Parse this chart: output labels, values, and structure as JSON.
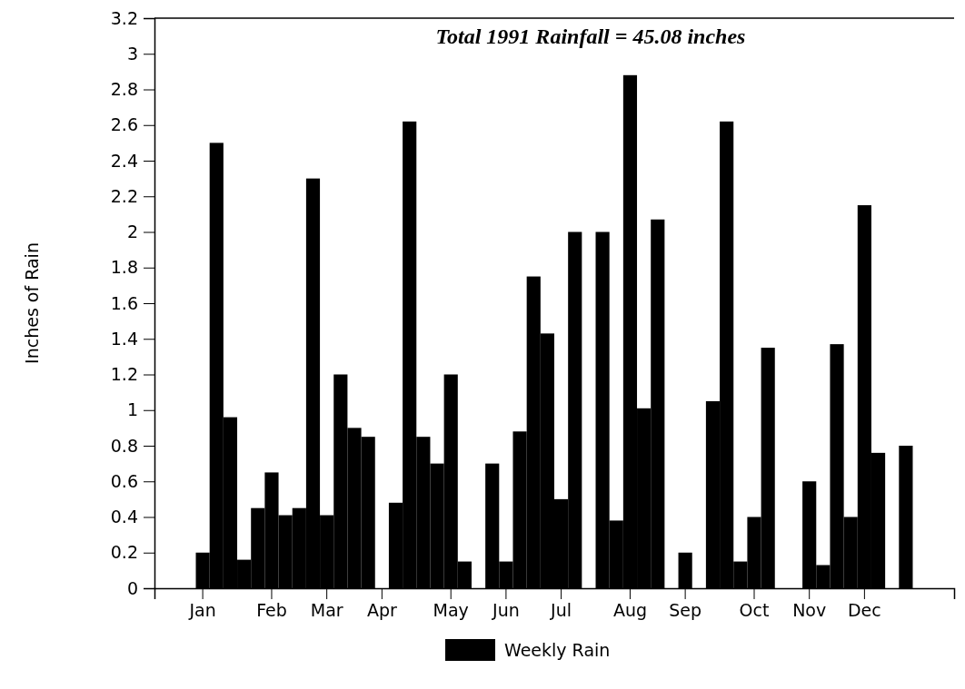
{
  "chart_data": {
    "type": "bar",
    "title": "Total 1991 Rainfall = 45.08 inches",
    "ylabel": "Inches of Rain",
    "categories": [
      "Jan",
      null,
      null,
      null,
      null,
      "Feb",
      null,
      null,
      null,
      "Mar",
      null,
      null,
      null,
      "Apr",
      null,
      null,
      null,
      null,
      "May",
      null,
      null,
      null,
      "Jun",
      null,
      null,
      null,
      "Jul",
      null,
      null,
      null,
      null,
      "Aug",
      null,
      null,
      null,
      "Sep",
      null,
      null,
      null,
      null,
      "Oct",
      null,
      null,
      null,
      "Nov",
      null,
      null,
      null,
      "Dec",
      null,
      null,
      null
    ],
    "series": [
      {
        "name": "Weekly Rain",
        "color": "#000000",
        "values": [
          0.2,
          2.5,
          0.96,
          0.16,
          0.45,
          0.65,
          0.41,
          0.45,
          2.3,
          0.41,
          1.2,
          0.9,
          0.85,
          0,
          0.48,
          2.62,
          0.85,
          0.7,
          1.2,
          0.15,
          0,
          0.7,
          0.15,
          0.88,
          1.75,
          1.43,
          0.5,
          2.0,
          0,
          2.0,
          0.38,
          2.88,
          1.01,
          2.07,
          0,
          0.2,
          0,
          1.05,
          2.62,
          0.15,
          0.4,
          1.35,
          0,
          0,
          0.6,
          0.13,
          1.37,
          0.4,
          2.15,
          0.76,
          0,
          0.8
        ]
      }
    ],
    "ylim": [
      0,
      3.2
    ],
    "yticks": [
      0,
      0.2,
      0.4,
      0.6,
      0.8,
      1,
      1.2,
      1.4,
      1.6,
      1.8,
      2,
      2.2,
      2.4,
      2.6,
      2.8,
      3,
      3.2
    ],
    "legend": "bottom"
  }
}
